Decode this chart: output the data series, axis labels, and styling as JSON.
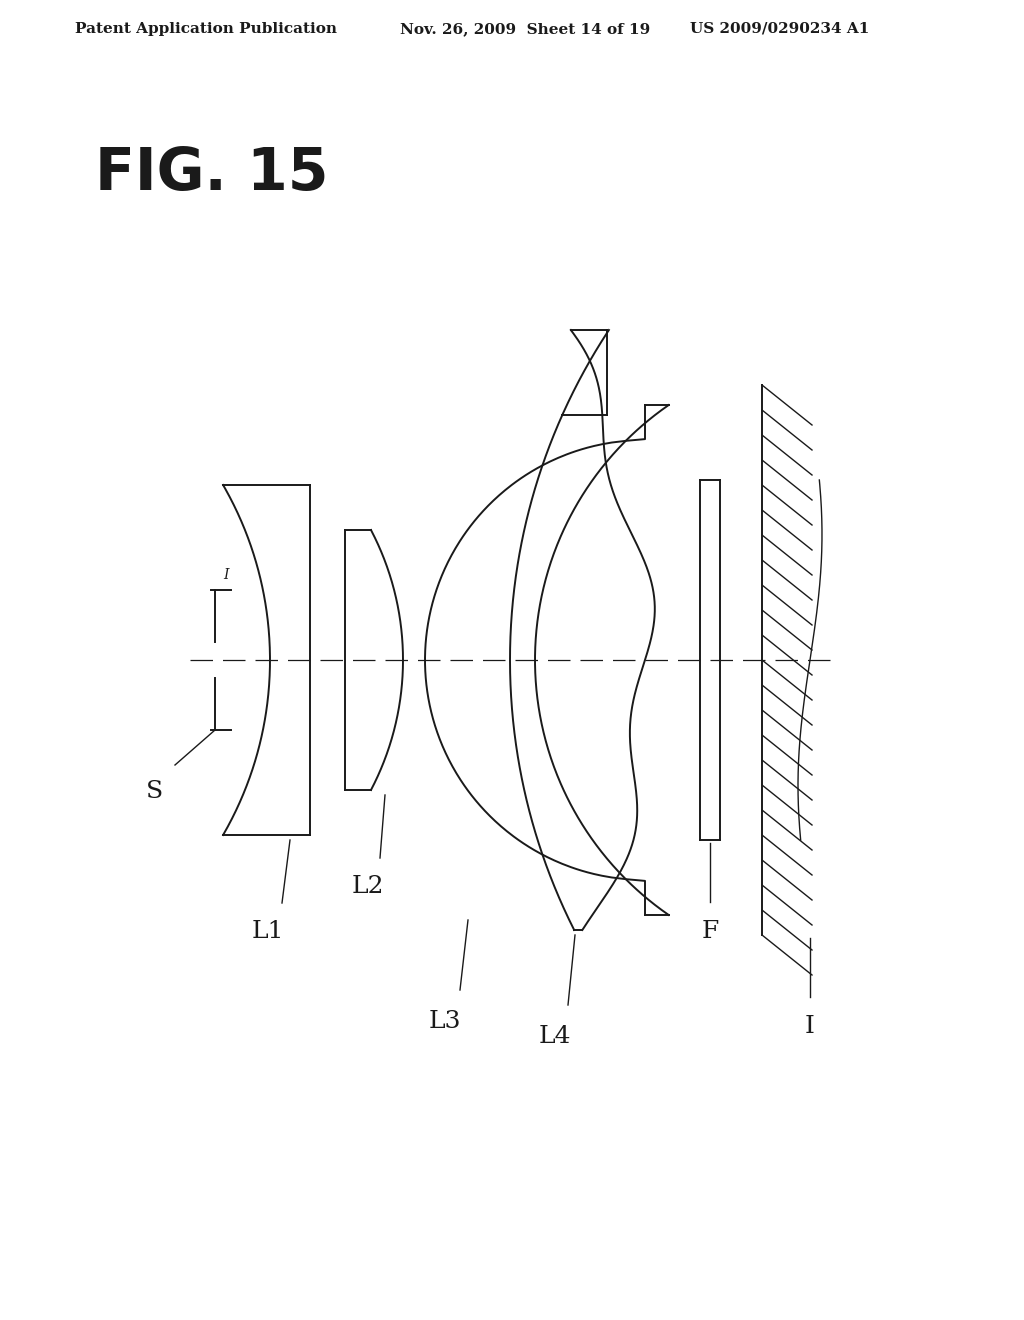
{
  "title": "FIG. 15",
  "header_left": "Patent Application Publication",
  "header_mid": "Nov. 26, 2009  Sheet 14 of 19",
  "header_right": "US 2009/0290234 A1",
  "background_color": "#ffffff",
  "line_color": "#1a1a1a",
  "lw": 1.4,
  "lw_thin": 1.0,
  "lw_axis": 0.9
}
